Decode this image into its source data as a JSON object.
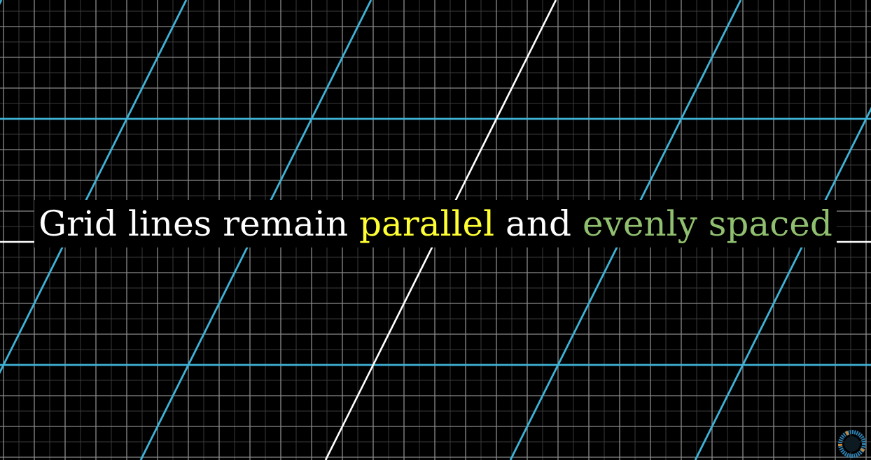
{
  "caption": {
    "part1": "Grid lines remain",
    "part2": "parallel",
    "part3": "and",
    "part4": "evenly spaced"
  },
  "colors": {
    "background": "#000000",
    "background_grid": "#8a8a8a",
    "background_grid_faint": "#3a3a3a",
    "transformed_grid": "#3fb3d6",
    "axis": "#ffffff",
    "text_main": "#ffffff",
    "text_parallel": "#ffff33",
    "text_evenly_spaced": "#8fbf6f"
  },
  "icons": {
    "corner_logo": "pi-creature-eye-logo-icon"
  }
}
